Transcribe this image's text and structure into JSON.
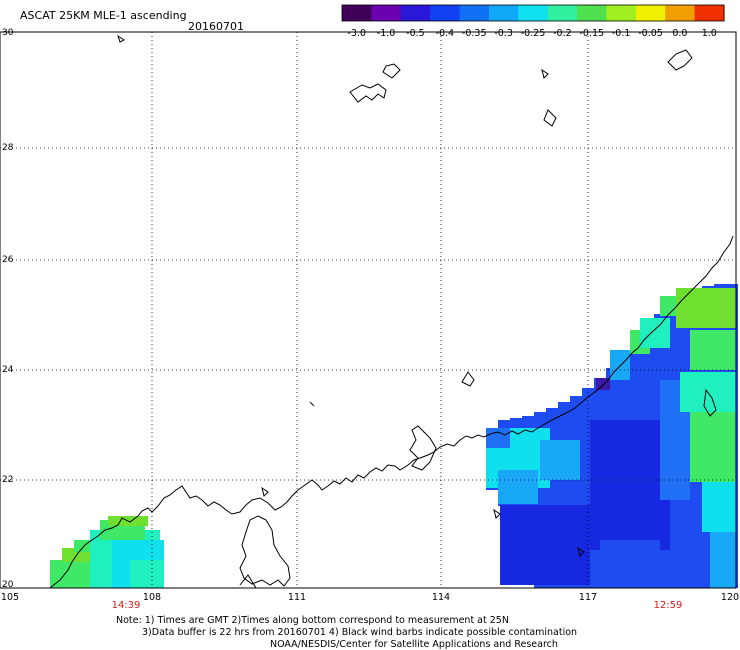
{
  "header": {
    "title": "ASCAT 25KM MLE-1 ascending",
    "date": "20160701"
  },
  "colorbar": {
    "ticks": [
      "-3.0",
      "-1.0",
      "-0.5",
      "-0.4",
      "-0.35",
      "-0.3",
      "-0.25",
      "-0.2",
      "-0.15",
      "-0.1",
      "-0.05",
      "0.0",
      "1.0"
    ],
    "colors": [
      "#40005a",
      "#6a00b0",
      "#2a18d8",
      "#1040f0",
      "#1070f8",
      "#10a8f8",
      "#10e0f0",
      "#30f0a0",
      "#50e050",
      "#a0f020",
      "#f0f000",
      "#f0a000",
      "#f03000"
    ]
  },
  "map": {
    "lat_labels": [
      "30",
      "28",
      "26",
      "24",
      "22",
      "20"
    ],
    "lon_labels": [
      "105",
      "108",
      "111",
      "114",
      "117",
      "120"
    ],
    "colors": {
      "blue_deep": "#1628e0",
      "blue": "#1e4cf0",
      "blue_mid": "#2070f5",
      "cyan_blue": "#18a8f5",
      "cyan": "#10e0ee",
      "aqua": "#20f0c0",
      "green": "#40e868",
      "lime": "#70e030",
      "purple": "#3a1aa8"
    }
  },
  "times": {
    "left": "14:39",
    "right": "12:59"
  },
  "notes": {
    "line1": "Note: 1) Times are GMT 2)Times along bottom correspond to measurement at 25N",
    "line2": "3)Data buffer is 22 hrs from 20160701 4) Black wind barbs indicate possible contamination",
    "credit": "NOAA/NESDIS/Center for Satellite Applications and Research"
  }
}
